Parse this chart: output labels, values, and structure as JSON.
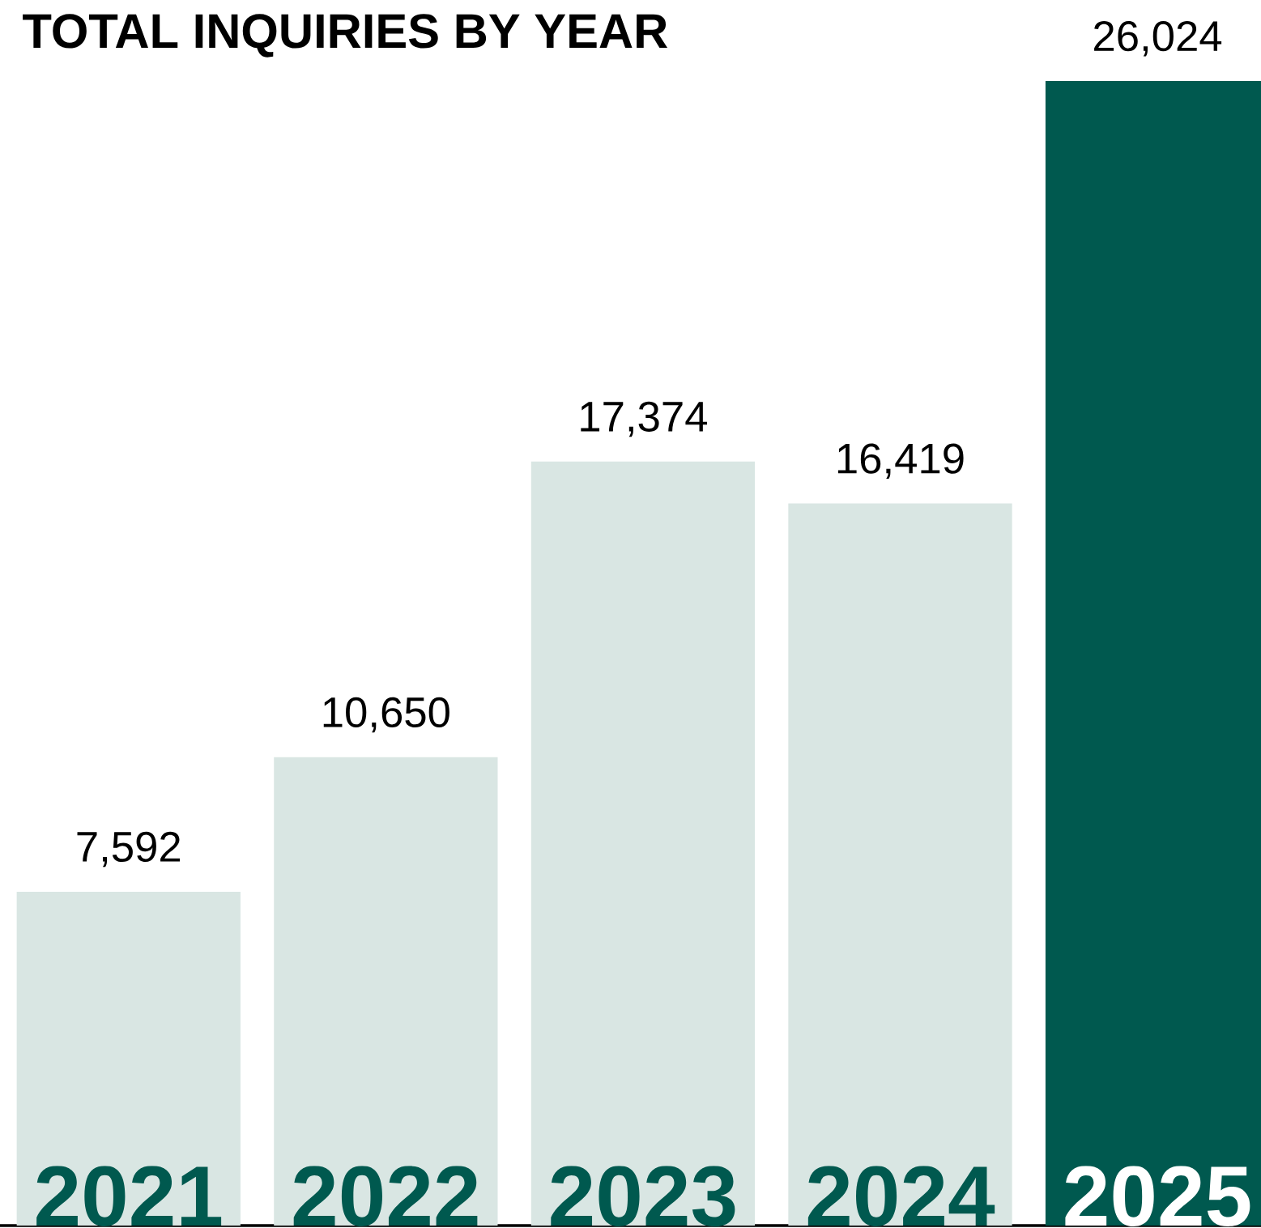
{
  "chart_data": {
    "type": "bar",
    "title": "TOTAL INQUIRIES BY YEAR",
    "categories": [
      "2021",
      "2022",
      "2023",
      "2024",
      "2025"
    ],
    "values": [
      7592,
      10650,
      17374,
      16419,
      26024
    ],
    "value_labels": [
      "7,592",
      "10,650",
      "17,374",
      "16,419",
      "26,024"
    ],
    "colors": [
      "#d9e6e3",
      "#d9e6e3",
      "#d9e6e3",
      "#d9e6e3",
      "#00594f"
    ]
  }
}
